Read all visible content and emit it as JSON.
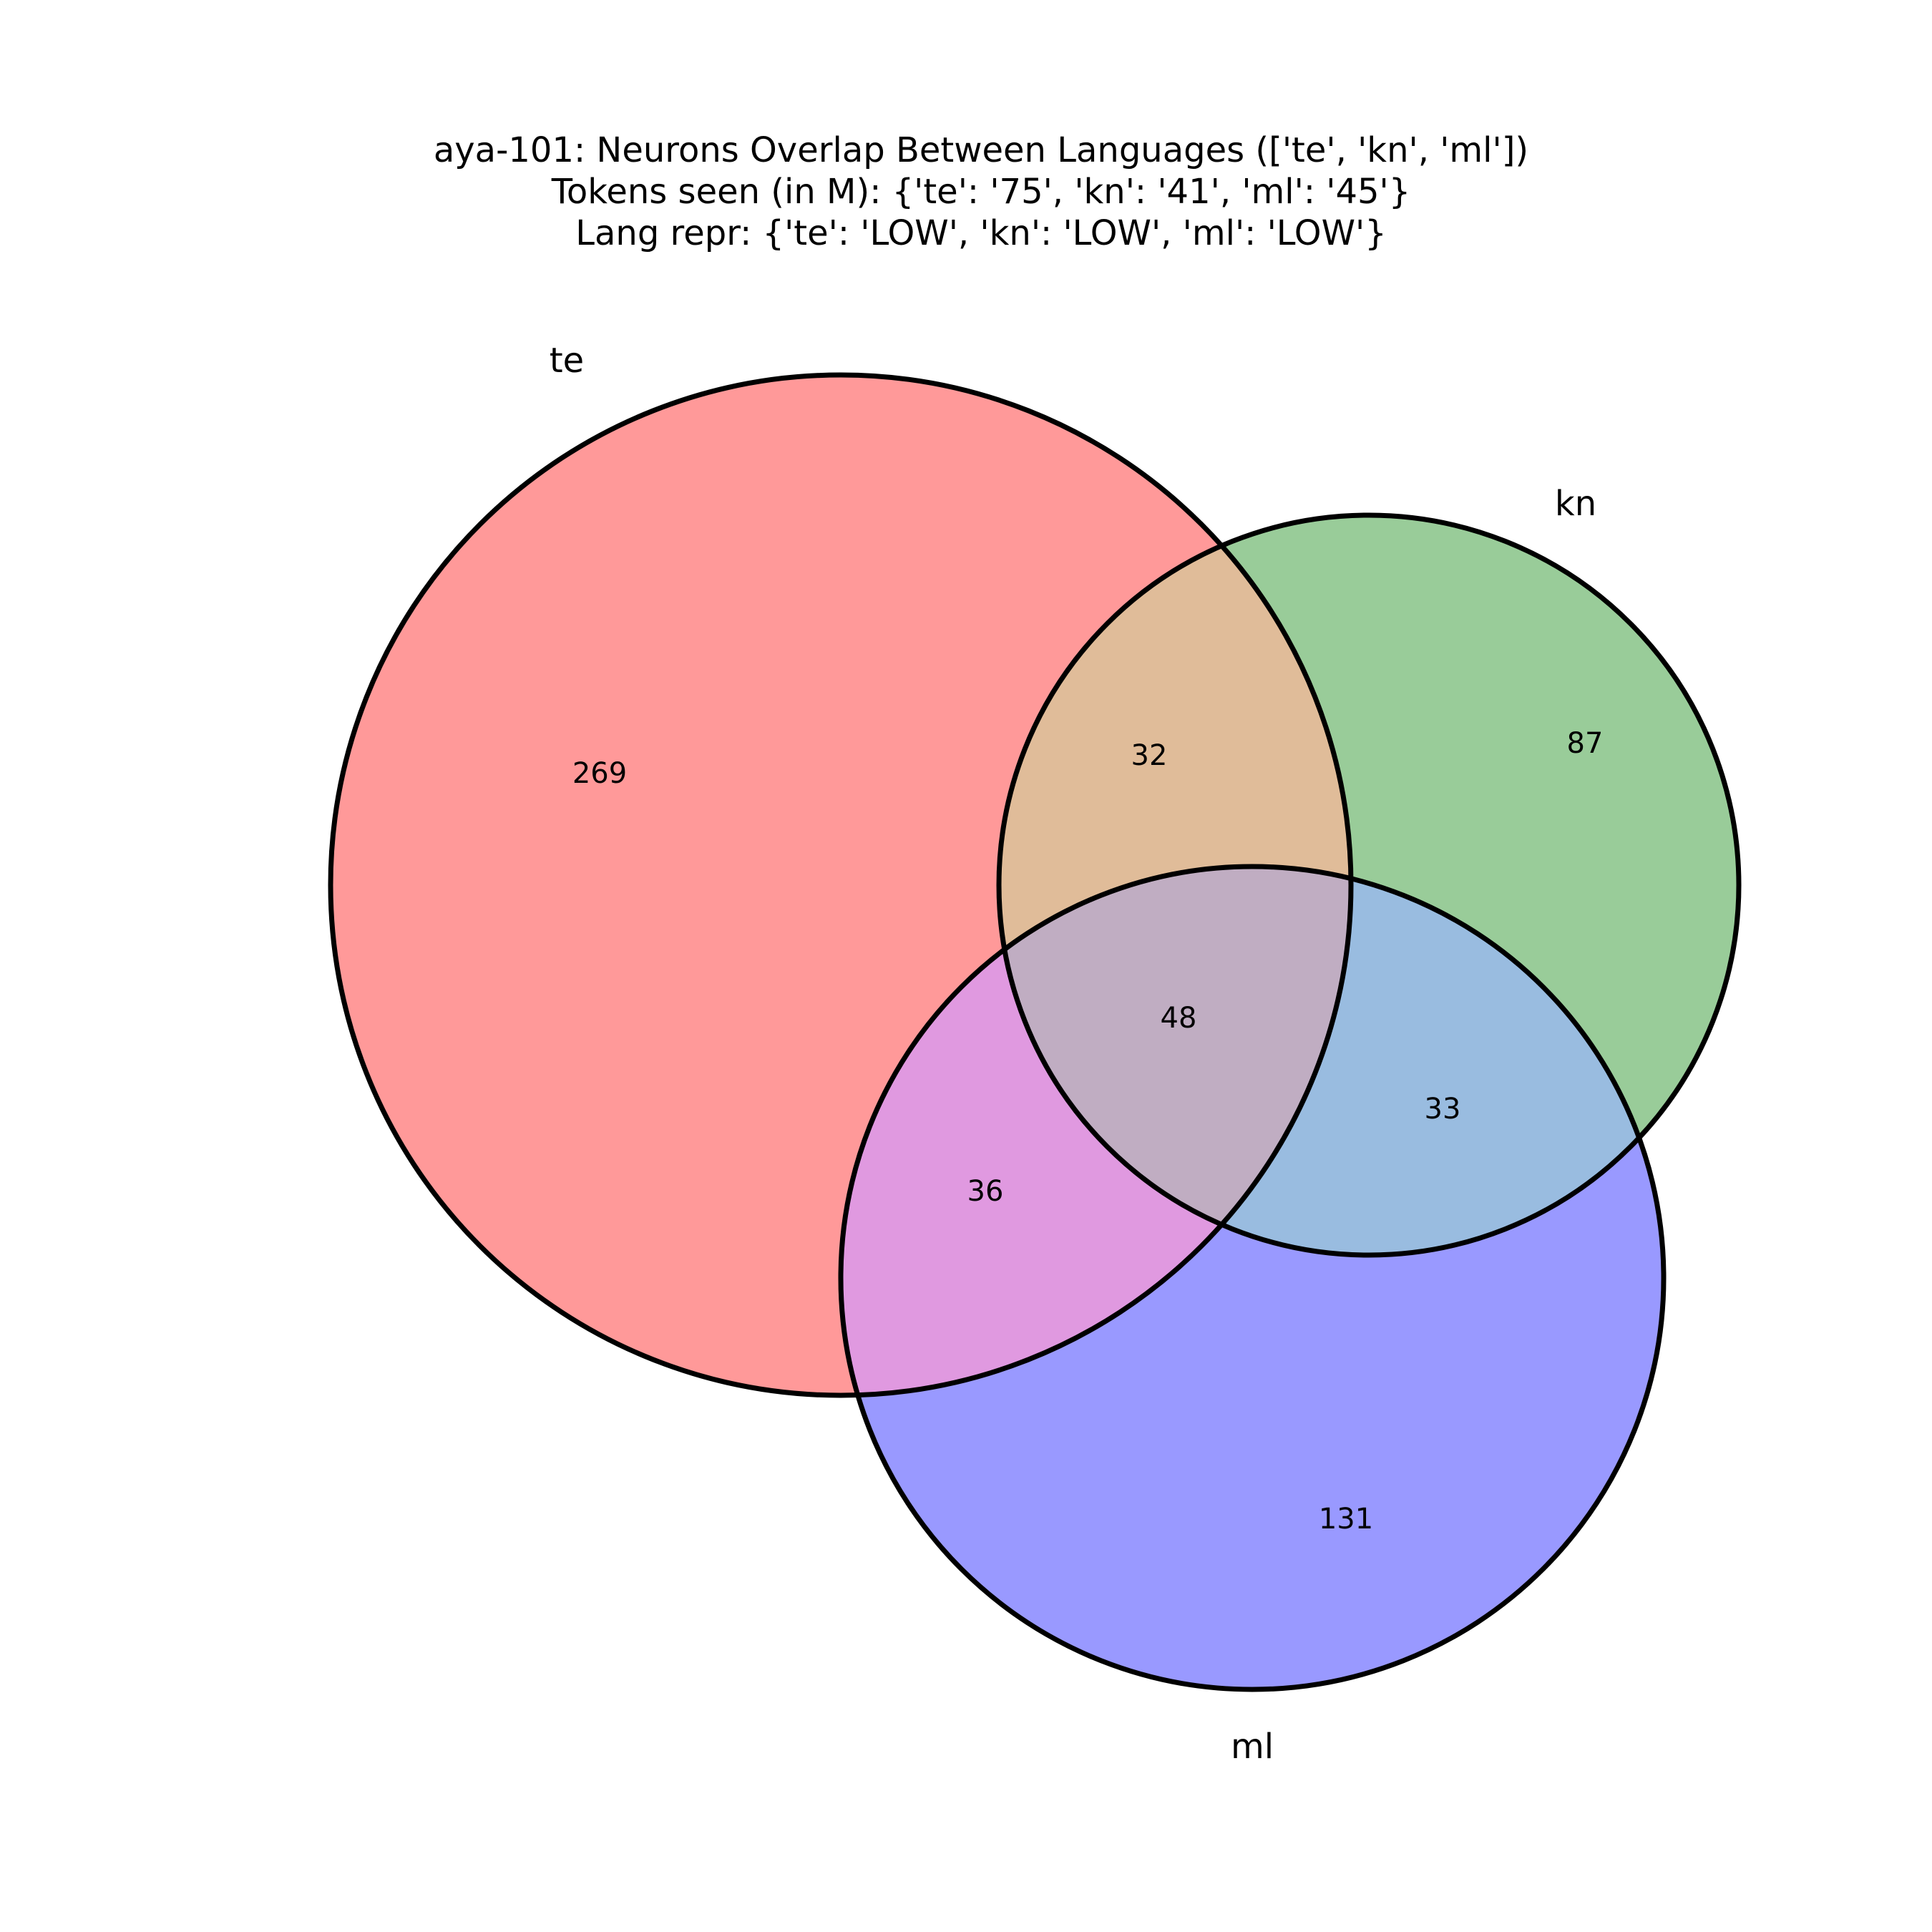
{
  "chart_data": {
    "type": "venn",
    "title": [
      "aya-101: Neurons Overlap Between Languages (['te', 'kn', 'ml'])",
      "Tokens seen (in M): {'te': '75', 'kn': '41', 'ml': '45'}",
      "Lang repr: {'te': 'LOW', 'kn': 'LOW', 'ml': 'LOW'}"
    ],
    "sets": [
      {
        "name": "te",
        "color": "#ff0000"
      },
      {
        "name": "kn",
        "color": "#008000"
      },
      {
        "name": "ml",
        "color": "#0000ff"
      }
    ],
    "regions": {
      "te_only": 269,
      "kn_only": 87,
      "ml_only": 131,
      "te_kn": 32,
      "te_ml": 36,
      "kn_ml": 33,
      "te_kn_ml": 48
    }
  }
}
